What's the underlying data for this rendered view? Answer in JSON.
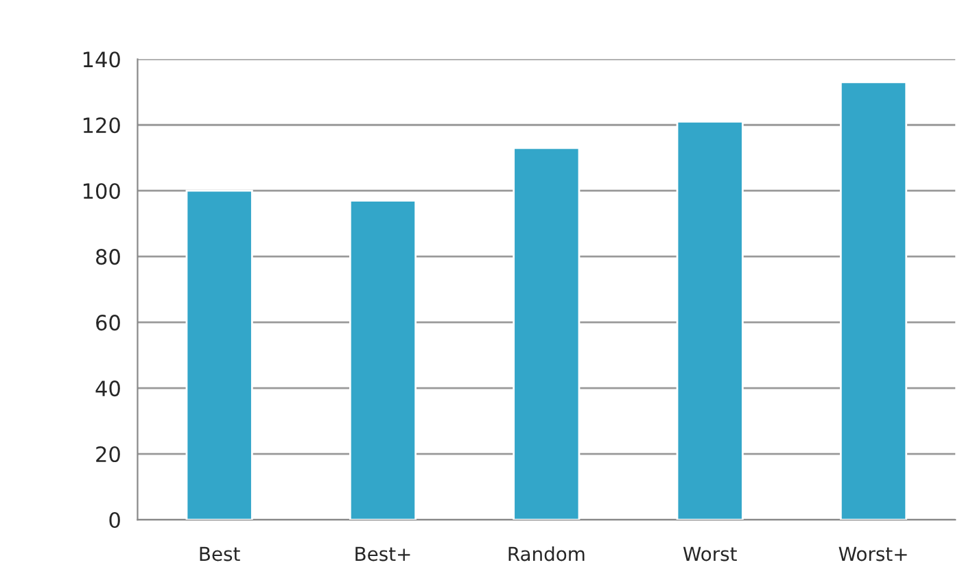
{
  "chart_data": {
    "type": "bar",
    "categories": [
      "Best",
      "Best+",
      "Random",
      "Worst",
      "Worst+"
    ],
    "values": [
      100,
      97,
      113,
      121,
      133
    ],
    "color": "#33a6c9",
    "ylim": [
      0,
      140
    ],
    "yticks": [
      0,
      20,
      40,
      60,
      80,
      100,
      120,
      140
    ],
    "grid": "y",
    "legend": false
  }
}
